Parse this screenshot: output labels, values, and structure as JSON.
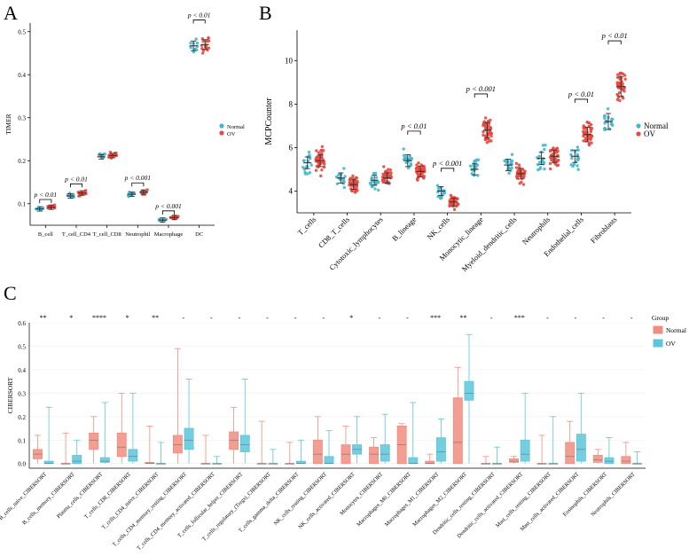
{
  "panels": {
    "a": "A",
    "b": "B",
    "c": "C"
  },
  "colors": {
    "normal": "#42B8CE",
    "ov": "#E8483F",
    "normal_fill": "#BDE6EE",
    "ov_fill": "#F3B6AE",
    "c_normal": "#F08D80",
    "c_ov": "#5CC5DA"
  },
  "chart_data": [
    {
      "id": "A",
      "type": "scatter",
      "ylabel": "TIMER",
      "ylim": [
        0.05,
        0.52
      ],
      "yticks": [
        "0.1",
        "0.2",
        "0.3",
        "0.4",
        "0.5"
      ],
      "ytick_values": [
        0.1,
        0.2,
        0.3,
        0.4,
        0.5
      ],
      "categories": [
        "B_cell",
        "T_cell_CD4",
        "T_cell_CD8",
        "Neutrophil",
        "Macrophage",
        "DC"
      ],
      "legend": [
        "Normal",
        "OV"
      ],
      "series": [
        {
          "name": "Normal",
          "values": [
            0.088,
            0.118,
            0.209,
            0.122,
            0.062,
            0.467
          ]
        },
        {
          "name": "OV",
          "values": [
            0.092,
            0.125,
            0.212,
            0.127,
            0.068,
            0.47
          ]
        }
      ],
      "annotations": [
        "p < 0.01",
        "p < 0.01",
        "",
        "p < 0.001",
        "p < 0.001",
        "p < 0.01"
      ]
    },
    {
      "id": "B",
      "type": "scatter",
      "ylabel": "MCPCounter",
      "ylim": [
        3,
        11.4
      ],
      "yticks": [
        "4",
        "6",
        "8",
        "10"
      ],
      "ytick_values": [
        4,
        6,
        8,
        10
      ],
      "categories": [
        "T_cells",
        "CD8_T_cells",
        "Cytotoxic_lymphocytes",
        "B_lineage",
        "NK_cells",
        "Monocytic_lineage",
        "Myeloid_dendritic_cells",
        "Neutrophils",
        "Endothelial_cells",
        "Fibroblasts"
      ],
      "legend": [
        "Normal",
        "OV"
      ],
      "series": [
        {
          "name": "Normal",
          "values": [
            5.3,
            4.6,
            4.5,
            5.4,
            4.0,
            5.0,
            5.2,
            5.5,
            5.6,
            7.2
          ]
        },
        {
          "name": "OV",
          "values": [
            5.4,
            4.3,
            4.6,
            4.9,
            3.5,
            6.8,
            4.8,
            5.6,
            6.6,
            8.8
          ]
        }
      ],
      "annotations": [
        "",
        "",
        "",
        "p < 0.01",
        "p < 0.001",
        "p < 0.001",
        "",
        "",
        "p < 0.01",
        "p < 0.01"
      ]
    },
    {
      "id": "C",
      "type": "box",
      "ylabel": "CIBERSORT",
      "ylim": [
        -0.02,
        0.6
      ],
      "yticks": [
        "0.0",
        "0.1",
        "0.2",
        "0.3",
        "0.4",
        "0.5",
        "0.6"
      ],
      "ytick_values": [
        0.0,
        0.1,
        0.2,
        0.3,
        0.4,
        0.5,
        0.6
      ],
      "legend_title": "Group",
      "legend": [
        "Normal",
        "OV"
      ],
      "categories": [
        "B_cells_naive_CIBERSORT",
        "B_cells_memory_CIBERSORT",
        "Plasma_cells_CIBERSORT",
        "T_cells_CD8_CIBERSORT",
        "T_cells_CD4_naive_CIBERSORT",
        "T_cells_CD4_memory_resting_CIBERSORT",
        "T_cells_CD4_memory_activated_CIBERSORT",
        "T_cells_follicular_helper_CIBERSORT",
        "T_cells_regulatory_(Tregs)_CIBERSORT",
        "T_cells_gamma_delta_CIBERSORT",
        "NK_cells_resting_CIBERSORT",
        "NK_cells_activated_CIBERSORT",
        "Monocytes_CIBERSORT",
        "Macrophages_M0_CIBERSORT",
        "Macrophages_M1_CIBERSORT",
        "Macrophages_M2_CIBERSORT",
        "Dendritic_cells_resting_CIBERSORT",
        "Dendritic_cells_activated_CIBERSORT",
        "Mast_cells_resting_CIBERSORT",
        "Mast_cells_activated_CIBERSORT",
        "Eosinophils_CIBERSORT",
        "Neutrophils_CIBERSORT"
      ],
      "significance": [
        "**",
        "*",
        "****",
        "*",
        "**",
        "-",
        "-",
        "-",
        "-",
        "-",
        "-",
        "*",
        "-",
        "-",
        "***",
        "**",
        "-",
        "***",
        "-",
        "-",
        "-",
        "-"
      ],
      "series": [
        {
          "name": "Normal",
          "boxes": [
            [
              0.0,
              0.02,
              0.04,
              0.06,
              0.12
            ],
            [
              0.0,
              0.0,
              0.0,
              0.0,
              0.13
            ],
            [
              0.0,
              0.06,
              0.1,
              0.13,
              0.2
            ],
            [
              0.0,
              0.03,
              0.07,
              0.13,
              0.3
            ],
            [
              0.0,
              0.0,
              0.0,
              0.005,
              0.16
            ],
            [
              0.0,
              0.045,
              0.08,
              0.12,
              0.49
            ],
            [
              0.0,
              0.0,
              0.0,
              0.0,
              0.12
            ],
            [
              0.0,
              0.06,
              0.1,
              0.135,
              0.24
            ],
            [
              0.0,
              0.0,
              0.0,
              0.0,
              0.18
            ],
            [
              0.0,
              0.0,
              0.0,
              0.0,
              0.09
            ],
            [
              0.0,
              0.0,
              0.04,
              0.1,
              0.2
            ],
            [
              0.0,
              0.0,
              0.04,
              0.08,
              0.16
            ],
            [
              0.0,
              0.0,
              0.04,
              0.07,
              0.11
            ],
            [
              0.0,
              0.0,
              0.08,
              0.16,
              0.17
            ],
            [
              0.0,
              0.0,
              0.0,
              0.01,
              0.04
            ],
            [
              0.0,
              0.0,
              0.09,
              0.28,
              0.41
            ],
            [
              0.0,
              0.0,
              0.0,
              0.0,
              0.03
            ],
            [
              0.0,
              0.005,
              0.01,
              0.02,
              0.03
            ],
            [
              0.0,
              0.0,
              0.0,
              0.0,
              0.12
            ],
            [
              0.0,
              0.0,
              0.03,
              0.09,
              0.18
            ],
            [
              0.0,
              0.005,
              0.015,
              0.035,
              0.06
            ],
            [
              0.0,
              0.0,
              0.01,
              0.03,
              0.09
            ]
          ]
        },
        {
          "name": "OV",
          "boxes": [
            [
              0.0,
              0.0,
              0.0,
              0.01,
              0.24
            ],
            [
              0.0,
              0.0,
              0.01,
              0.035,
              0.1
            ],
            [
              0.0,
              0.005,
              0.01,
              0.025,
              0.26
            ],
            [
              0.0,
              0.01,
              0.03,
              0.06,
              0.3
            ],
            [
              0.0,
              0.0,
              0.0,
              0.0,
              0.09
            ],
            [
              0.0,
              0.06,
              0.1,
              0.15,
              0.36
            ],
            [
              0.0,
              0.0,
              0.0,
              0.0,
              0.03
            ],
            [
              0.0,
              0.05,
              0.08,
              0.12,
              0.36
            ],
            [
              0.0,
              0.0,
              0.0,
              0.0,
              0.06
            ],
            [
              0.0,
              0.0,
              0.0,
              0.01,
              0.1
            ],
            [
              0.0,
              0.0,
              0.0,
              0.03,
              0.14
            ],
            [
              0.0,
              0.04,
              0.06,
              0.08,
              0.2
            ],
            [
              0.0,
              0.01,
              0.04,
              0.08,
              0.21
            ],
            [
              0.0,
              0.0,
              0.0,
              0.025,
              0.26
            ],
            [
              0.0,
              0.01,
              0.05,
              0.11,
              0.19
            ],
            [
              0.0,
              0.27,
              0.3,
              0.35,
              0.55
            ],
            [
              0.0,
              0.0,
              0.0,
              0.0,
              0.07
            ],
            [
              0.0,
              0.01,
              0.04,
              0.1,
              0.3
            ],
            [
              0.0,
              0.0,
              0.0,
              0.0,
              0.2
            ],
            [
              0.0,
              0.01,
              0.06,
              0.125,
              0.3
            ],
            [
              0.0,
              0.0,
              0.01,
              0.025,
              0.11
            ],
            [
              0.0,
              0.0,
              0.0,
              0.0,
              0.05
            ]
          ]
        }
      ]
    }
  ]
}
